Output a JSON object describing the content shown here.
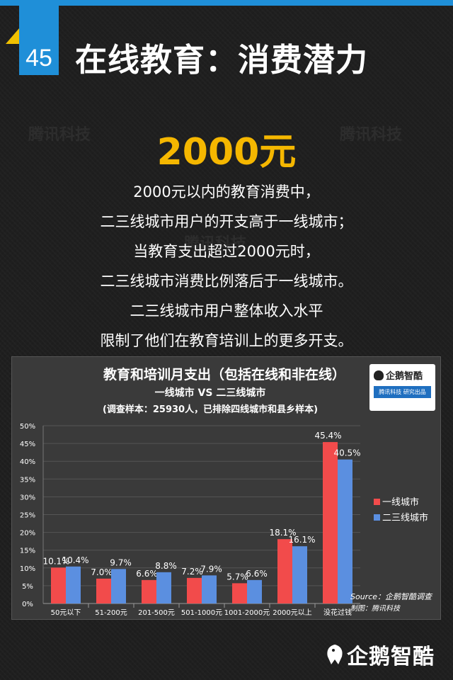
{
  "header": {
    "number": "45",
    "title": "在线教育：消费潜力"
  },
  "watermark": "腾讯科技",
  "highlight": {
    "figure": "2000元",
    "lines": [
      "2000元以内的教育消费中，",
      "二三线城市用户的开支高于一线城市；",
      "当教育支出超过2000元时，",
      "二三线城市消费比例落后于一线城市。",
      "二三线城市用户整体收入水平",
      "限制了他们在教育培训上的更多开支。"
    ]
  },
  "badge": {
    "brand": "企鹅智酷",
    "strip": "腾讯科技  研究出品"
  },
  "chart_data": {
    "type": "bar",
    "title": "教育和培训月支出（包括在线和非在线）",
    "subtitle": "一线城市 VS 二三线城市",
    "note": "(调查样本：25930人，已排除四线城市和县乡样本)",
    "categories": [
      "50元以下",
      "51-200元",
      "201-500元",
      "501-1000元",
      "1001-2000元",
      "2000元以上",
      "没花过钱"
    ],
    "series": [
      {
        "name": "一线城市",
        "color": "#f24b4b",
        "values": [
          10.1,
          7.0,
          6.6,
          7.2,
          5.7,
          18.1,
          45.4
        ],
        "labels": [
          "10.1%",
          "7.0%",
          "6.6%",
          "7.2%",
          "5.7%",
          "18.1%",
          "45.4%"
        ]
      },
      {
        "name": "二三线城市",
        "color": "#5b8fe0",
        "values": [
          10.4,
          9.7,
          8.8,
          7.9,
          6.6,
          16.1,
          40.5
        ],
        "labels": [
          "10.4%",
          "9.7%",
          "8.8%",
          "7.9%",
          "6.6%",
          "16.1%",
          "40.5%"
        ]
      }
    ],
    "yticks": [
      "0%",
      "5%",
      "10%",
      "15%",
      "20%",
      "25%",
      "30%",
      "35%",
      "40%",
      "45%",
      "50%"
    ],
    "ylim": [
      0,
      50
    ],
    "legend_position": "right",
    "source": "Source：企鹅智酷调查",
    "credit": "制图：腾讯科技"
  },
  "footer_logo": "企鹅智酷"
}
